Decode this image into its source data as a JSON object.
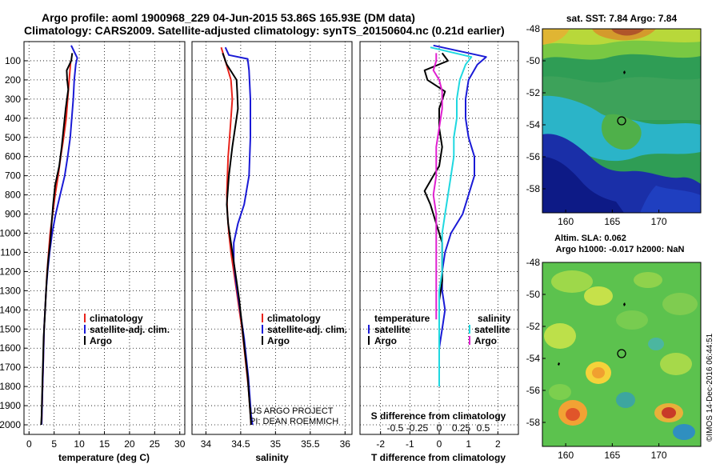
{
  "header": {
    "title_line1": "Argo profile: aoml 1900968_229 04-Jun-2015 53.86S 165.93E (DM data)",
    "title_line2": "Climatology: CARS2009. Satellite-adjusted climatology: synTS_20150604.nc (0.21d earlier)"
  },
  "colors": {
    "climatology": "#e8231b",
    "satellite": "#1a1ad6",
    "argo": "#000000",
    "salinity_satellite": "#1fd8e0",
    "salinity_argo": "#e020d0"
  },
  "footer": {
    "project": "US ARGO PROJECT",
    "pi": "PI: DEAN ROEMMICH",
    "credit": "©IMOS 14-Dec-2016 06:44:51"
  },
  "chart_data": [
    {
      "id": "temperature",
      "type": "line",
      "xlabel": "temperature (deg C)",
      "xlim": [
        -1,
        31
      ],
      "xticks": [
        0,
        5,
        10,
        15,
        20,
        25,
        30
      ],
      "xtick_labels": [
        "0",
        "5",
        "10",
        "15",
        "20",
        "25",
        "30"
      ],
      "ylim": [
        2050,
        0
      ],
      "yticks": [
        100,
        200,
        300,
        400,
        500,
        600,
        700,
        800,
        900,
        1000,
        1100,
        1200,
        1300,
        1400,
        1500,
        1600,
        1700,
        1800,
        1900,
        2000
      ],
      "grid": "dotted",
      "legend": [
        "climatology",
        "satellite-adj. clim.",
        "Argo"
      ],
      "series": [
        {
          "name": "climatology",
          "color_key": "climatology",
          "points": [
            [
              8.3,
              100
            ],
            [
              8.0,
              200
            ],
            [
              7.7,
              300
            ],
            [
              7.4,
              400
            ],
            [
              6.9,
              500
            ],
            [
              6.3,
              600
            ],
            [
              5.8,
              700
            ],
            [
              5.2,
              800
            ],
            [
              4.7,
              900
            ],
            [
              4.2,
              1000
            ],
            [
              3.9,
              1100
            ],
            [
              3.6,
              1200
            ],
            [
              3.4,
              1300
            ],
            [
              3.2,
              1400
            ],
            [
              3.0,
              1500
            ],
            [
              2.9,
              1600
            ],
            [
              2.8,
              1700
            ],
            [
              2.7,
              1800
            ],
            [
              2.6,
              1900
            ],
            [
              2.5,
              2000
            ]
          ]
        },
        {
          "name": "satellite-adj. clim.",
          "color_key": "satellite",
          "points": [
            [
              8.4,
              20
            ],
            [
              9.6,
              85
            ],
            [
              9.3,
              120
            ],
            [
              9.0,
              200
            ],
            [
              8.8,
              300
            ],
            [
              8.5,
              400
            ],
            [
              8.2,
              500
            ],
            [
              7.7,
              600
            ],
            [
              7.1,
              700
            ],
            [
              6.2,
              800
            ],
            [
              5.3,
              900
            ],
            [
              4.6,
              1000
            ],
            [
              4.1,
              1100
            ],
            [
              3.7,
              1200
            ],
            [
              3.4,
              1300
            ],
            [
              3.2,
              1400
            ],
            [
              3.0,
              1500
            ],
            [
              2.9,
              1600
            ],
            [
              2.8,
              1700
            ],
            [
              2.7,
              1800
            ],
            [
              2.6,
              1900
            ],
            [
              2.5,
              2000
            ]
          ]
        },
        {
          "name": "Argo",
          "color_key": "argo",
          "points": [
            [
              8.6,
              60
            ],
            [
              8.4,
              100
            ],
            [
              7.5,
              150
            ],
            [
              7.6,
              200
            ],
            [
              7.8,
              250
            ],
            [
              7.3,
              350
            ],
            [
              6.9,
              450
            ],
            [
              6.5,
              550
            ],
            [
              6.0,
              650
            ],
            [
              5.2,
              750
            ],
            [
              4.8,
              850
            ],
            [
              4.5,
              950
            ],
            [
              4.2,
              1050
            ],
            [
              3.8,
              1150
            ],
            [
              3.5,
              1250
            ],
            [
              3.3,
              1350
            ],
            [
              3.1,
              1450
            ],
            [
              2.9,
              1550
            ],
            [
              2.8,
              1650
            ],
            [
              2.7,
              1750
            ],
            [
              2.6,
              1850
            ],
            [
              2.5,
              1950
            ],
            [
              2.4,
              2000
            ]
          ]
        }
      ]
    },
    {
      "id": "salinity",
      "type": "line",
      "xlabel": "salinity",
      "xlim": [
        33.8,
        36.1
      ],
      "xticks": [
        34,
        34.5,
        35,
        35.5,
        36
      ],
      "xtick_labels": [
        "34",
        "34.5",
        "35",
        "35.5",
        "36"
      ],
      "ylim": [
        2050,
        0
      ],
      "grid": "dotted",
      "legend": [
        "climatology",
        "satellite-adj. clim.",
        "Argo"
      ],
      "series": [
        {
          "name": "climatology",
          "color_key": "climatology",
          "points": [
            [
              34.22,
              30
            ],
            [
              34.28,
              100
            ],
            [
              34.36,
              200
            ],
            [
              34.38,
              300
            ],
            [
              34.36,
              400
            ],
            [
              34.34,
              500
            ],
            [
              34.32,
              600
            ],
            [
              34.31,
              700
            ],
            [
              34.3,
              800
            ],
            [
              34.31,
              900
            ],
            [
              34.33,
              1000
            ],
            [
              34.36,
              1100
            ],
            [
              34.4,
              1200
            ],
            [
              34.44,
              1300
            ],
            [
              34.48,
              1400
            ],
            [
              34.52,
              1500
            ],
            [
              34.55,
              1600
            ],
            [
              34.58,
              1700
            ],
            [
              34.61,
              1800
            ],
            [
              34.63,
              1900
            ],
            [
              34.65,
              2000
            ]
          ]
        },
        {
          "name": "satellite-adj. clim.",
          "color_key": "satellite",
          "points": [
            [
              34.28,
              30
            ],
            [
              34.33,
              70
            ],
            [
              34.6,
              90
            ],
            [
              34.62,
              150
            ],
            [
              34.64,
              300
            ],
            [
              34.64,
              500
            ],
            [
              34.62,
              700
            ],
            [
              34.55,
              850
            ],
            [
              34.46,
              950
            ],
            [
              34.4,
              1050
            ],
            [
              34.4,
              1150
            ],
            [
              34.43,
              1250
            ],
            [
              34.47,
              1350
            ],
            [
              34.51,
              1450
            ],
            [
              34.55,
              1550
            ],
            [
              34.58,
              1650
            ],
            [
              34.61,
              1750
            ],
            [
              34.63,
              1850
            ],
            [
              34.65,
              1950
            ],
            [
              34.67,
              2000
            ]
          ]
        },
        {
          "name": "Argo",
          "color_key": "argo",
          "points": [
            [
              34.24,
              60
            ],
            [
              34.3,
              120
            ],
            [
              34.44,
              200
            ],
            [
              34.45,
              260
            ],
            [
              34.46,
              350
            ],
            [
              34.42,
              450
            ],
            [
              34.38,
              550
            ],
            [
              34.33,
              700
            ],
            [
              34.3,
              850
            ],
            [
              34.32,
              950
            ],
            [
              34.36,
              1050
            ],
            [
              34.4,
              1150
            ],
            [
              34.44,
              1250
            ],
            [
              34.48,
              1350
            ],
            [
              34.51,
              1450
            ],
            [
              34.54,
              1550
            ],
            [
              34.57,
              1650
            ],
            [
              34.6,
              1750
            ],
            [
              34.62,
              1850
            ],
            [
              34.64,
              1950
            ],
            [
              34.65,
              2000
            ]
          ]
        }
      ]
    },
    {
      "id": "difference",
      "type": "line",
      "xlabel": "T difference from climatology",
      "xlabel_top": "S difference from climatology",
      "xlim": [
        -2.7,
        2.7
      ],
      "xticks": [
        -2,
        -1,
        0,
        1,
        2
      ],
      "xtick_labels": [
        "-2",
        "-1",
        "0",
        "1",
        "2"
      ],
      "top_ticks": [
        -1.5,
        -0.75,
        0,
        0.75,
        1.5
      ],
      "top_tick_labels": [
        "-0.5",
        "-0.25",
        "0",
        "0.25",
        "0.5"
      ],
      "ylim": [
        2050,
        0
      ],
      "grid": "dotted",
      "legend_temperature": {
        "heading": "temperature",
        "items": [
          "satellite",
          "Argo"
        ]
      },
      "legend_salinity": {
        "heading": "salinity",
        "items": [
          "satellite",
          "Argo"
        ]
      },
      "series": [
        {
          "name": "temperature satellite",
          "color_key": "satellite",
          "points": [
            [
              -0.2,
              20
            ],
            [
              1.6,
              80
            ],
            [
              1.3,
              120
            ],
            [
              1.0,
              200
            ],
            [
              0.9,
              300
            ],
            [
              0.9,
              400
            ],
            [
              1.0,
              500
            ],
            [
              1.2,
              600
            ],
            [
              1.2,
              700
            ],
            [
              1.0,
              800
            ],
            [
              0.8,
              900
            ],
            [
              0.4,
              1000
            ],
            [
              0.2,
              1100
            ],
            [
              0.1,
              1200
            ],
            [
              0.1,
              1300
            ],
            [
              0.2,
              1400
            ],
            [
              0.1,
              1500
            ],
            [
              0.0,
              1600
            ],
            [
              0.0,
              1700
            ],
            [
              0.0,
              1800
            ]
          ]
        },
        {
          "name": "temperature Argo",
          "color_key": "argo",
          "points": [
            [
              0.1,
              60
            ],
            [
              0.3,
              100
            ],
            [
              -0.5,
              150
            ],
            [
              -0.4,
              200
            ],
            [
              0.2,
              260
            ],
            [
              0.0,
              350
            ],
            [
              0.0,
              450
            ],
            [
              0.1,
              550
            ],
            [
              0.0,
              650
            ],
            [
              -0.2,
              700
            ],
            [
              -0.5,
              780
            ],
            [
              -0.3,
              850
            ],
            [
              -0.1,
              950
            ],
            [
              0.1,
              1050
            ],
            [
              0.1,
              1150
            ],
            [
              0.1,
              1250
            ],
            [
              0.0,
              1350
            ],
            [
              0.0,
              1450
            ],
            [
              0.0,
              1550
            ],
            [
              0.0,
              1650
            ],
            [
              0.0,
              1800
            ]
          ]
        },
        {
          "name": "salinity satellite",
          "color_key": "salinity_satellite",
          "points": [
            [
              -0.3,
              30
            ],
            [
              1.1,
              80
            ],
            [
              0.9,
              120
            ],
            [
              0.7,
              200
            ],
            [
              0.6,
              300
            ],
            [
              0.6,
              400
            ],
            [
              0.5,
              500
            ],
            [
              0.5,
              600
            ],
            [
              0.4,
              700
            ],
            [
              0.3,
              800
            ],
            [
              0.2,
              900
            ],
            [
              0.1,
              1000
            ],
            [
              0.1,
              1100
            ],
            [
              0.1,
              1200
            ],
            [
              0.0,
              1300
            ],
            [
              0.0,
              1400
            ],
            [
              0.0,
              1500
            ],
            [
              0.0,
              1600
            ],
            [
              0.0,
              1700
            ],
            [
              0.0,
              1800
            ]
          ]
        },
        {
          "name": "salinity Argo",
          "color_key": "salinity_argo",
          "points": [
            [
              -0.1,
              60
            ],
            [
              -0.1,
              100
            ],
            [
              -0.2,
              150
            ],
            [
              0.0,
              200
            ],
            [
              0.1,
              260
            ],
            [
              0.1,
              350
            ],
            [
              0.0,
              450
            ],
            [
              -0.1,
              550
            ],
            [
              -0.1,
              650
            ],
            [
              -0.1,
              700
            ],
            [
              -0.2,
              800
            ],
            [
              -0.1,
              900
            ],
            [
              -0.1,
              1000
            ],
            [
              -0.1,
              1100
            ],
            [
              -0.1,
              1200
            ],
            [
              -0.1,
              1300
            ],
            [
              -0.1,
              1400
            ],
            [
              -0.1,
              1450
            ]
          ]
        }
      ]
    },
    {
      "id": "sst_map",
      "type": "heatmap",
      "title": "sat. SST: 7.84 Argo: 7.84",
      "xlim": [
        157.5,
        174.5
      ],
      "ylim": [
        -59.5,
        -48
      ],
      "xticks": [
        160,
        165,
        170
      ],
      "xtick_labels": [
        "160",
        "165",
        "170"
      ],
      "yticks": [
        -48,
        -50,
        -52,
        -54,
        -56,
        -58
      ],
      "ytick_labels": [
        "-48",
        "-50",
        "-52",
        "-54",
        "-56",
        "-58"
      ],
      "float_position": [
        165.93,
        -53.86
      ]
    },
    {
      "id": "sla_map",
      "type": "heatmap",
      "title": "Altim. SLA: 0.062",
      "subtitle": "Argo h1000: -0.017 h2000: NaN",
      "xlim": [
        157.5,
        174.5
      ],
      "ylim": [
        -59.5,
        -48
      ],
      "xticks": [
        160,
        165,
        170
      ],
      "xtick_labels": [
        "160",
        "165",
        "170"
      ],
      "yticks": [
        -48,
        -50,
        -52,
        -54,
        -56,
        -58
      ],
      "ytick_labels": [
        "-48",
        "-50",
        "-52",
        "-54",
        "-56",
        "-58"
      ],
      "float_position": [
        165.93,
        -53.86
      ]
    }
  ]
}
